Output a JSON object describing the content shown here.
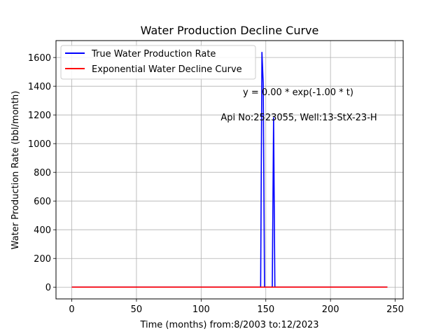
{
  "chart_data": {
    "type": "line",
    "title": "Water Production Decline Curve",
    "xlabel": "Time (months) from:8/2003 to:12/2023",
    "ylabel": "Water Production Rate (bbl/month)",
    "xlim": [
      -12.2,
      256.2
    ],
    "ylim": [
      -81.8,
      1717.8
    ],
    "xticks": [
      0,
      50,
      100,
      150,
      200,
      250
    ],
    "yticks": [
      0,
      200,
      400,
      600,
      800,
      1000,
      1200,
      1400,
      1600
    ],
    "grid": true,
    "legend_position": "top-left",
    "series": [
      {
        "name": "True Water Production Rate",
        "color": "#0000ff",
        "x": [
          0,
          146,
          147,
          148,
          149,
          150,
          151,
          155,
          156,
          157,
          158,
          159,
          244
        ],
        "y": [
          0,
          0,
          1636,
          1420,
          0,
          0,
          0,
          0,
          1180,
          0,
          0,
          0,
          0
        ]
      },
      {
        "name": "Exponential Water Decline Curve",
        "color": "#ff0000",
        "x": [
          0,
          244
        ],
        "y": [
          0,
          0
        ]
      }
    ],
    "annotations": [
      "y = 0.00 * exp(-1.00 * t)",
      "Api No:2523055, Well:13-StX-23-H"
    ]
  }
}
